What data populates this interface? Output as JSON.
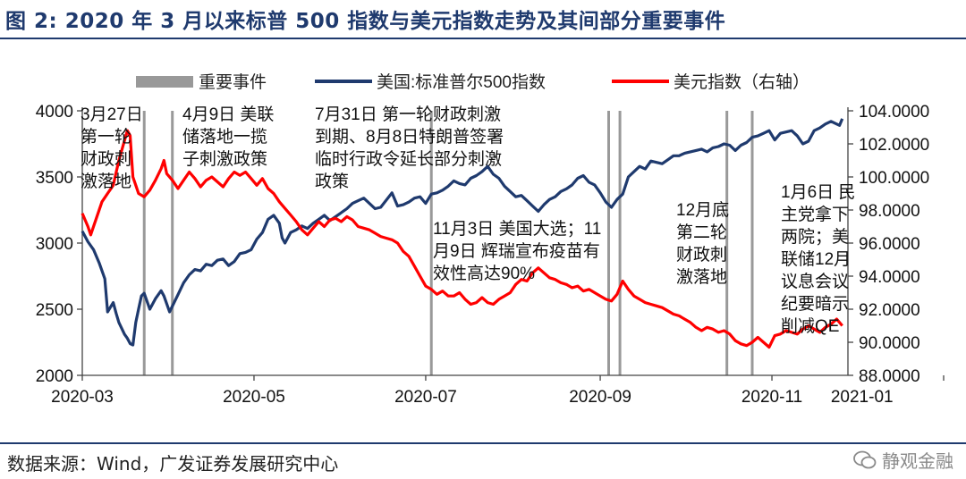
{
  "title": "图 2:  2020 年 3 月以来标普 500 指数与美元指数走势及其间部分重要事件",
  "source": "数据来源：Wind，广发证券发展研究中心",
  "watermark": "静观金融",
  "chart_data": {
    "type": "line",
    "x_ticks": [
      "2020-03",
      "2020-05",
      "2020-07",
      "2020-09",
      "2020-11",
      "2021-01"
    ],
    "left_axis": {
      "min": 2000,
      "max": 4000,
      "ticks": [
        2000,
        2500,
        3000,
        3500,
        4000
      ]
    },
    "right_axis": {
      "min": 88,
      "max": 104,
      "ticks": [
        "88.0000",
        "90.0000",
        "92.0000",
        "94.0000",
        "96.0000",
        "98.0000",
        "100.0000",
        "102.0000",
        "104.0000"
      ]
    },
    "legend": {
      "events": "重要事件",
      "sp500": "美国:标准普尔500指数",
      "dxy": "美元指数（右轴）"
    },
    "colors": {
      "sp500": "#1f3a6e",
      "dxy": "#ff0000",
      "events": "#999999",
      "axis": "#444444"
    },
    "event_days": [
      22,
      32,
      124,
      187,
      191,
      229,
      238
    ],
    "series": [
      {
        "name": "美国:标准普尔500指数",
        "axis": "left",
        "points": [
          [
            0,
            3090
          ],
          [
            2,
            3010
          ],
          [
            4,
            2950
          ],
          [
            6,
            2850
          ],
          [
            8,
            2730
          ],
          [
            9,
            2480
          ],
          [
            11,
            2550
          ],
          [
            12,
            2470
          ],
          [
            13,
            2400
          ],
          [
            15,
            2310
          ],
          [
            16,
            2280
          ],
          [
            17,
            2240
          ],
          [
            18,
            2230
          ],
          [
            19,
            2400
          ],
          [
            20,
            2500
          ],
          [
            21,
            2600
          ],
          [
            22,
            2620
          ],
          [
            24,
            2500
          ],
          [
            26,
            2580
          ],
          [
            28,
            2640
          ],
          [
            29,
            2600
          ],
          [
            31,
            2480
          ],
          [
            34,
            2610
          ],
          [
            36,
            2700
          ],
          [
            38,
            2760
          ],
          [
            40,
            2800
          ],
          [
            42,
            2790
          ],
          [
            44,
            2840
          ],
          [
            46,
            2830
          ],
          [
            48,
            2870
          ],
          [
            50,
            2880
          ],
          [
            52,
            2830
          ],
          [
            54,
            2860
          ],
          [
            56,
            2920
          ],
          [
            58,
            2930
          ],
          [
            60,
            2950
          ],
          [
            62,
            3030
          ],
          [
            64,
            3080
          ],
          [
            66,
            3180
          ],
          [
            68,
            3210
          ],
          [
            70,
            3150
          ],
          [
            71,
            3040
          ],
          [
            72,
            3000
          ],
          [
            74,
            3080
          ],
          [
            76,
            3100
          ],
          [
            78,
            3130
          ],
          [
            80,
            3110
          ],
          [
            82,
            3150
          ],
          [
            84,
            3180
          ],
          [
            86,
            3210
          ],
          [
            88,
            3170
          ],
          [
            90,
            3200
          ],
          [
            92,
            3230
          ],
          [
            94,
            3260
          ],
          [
            96,
            3300
          ],
          [
            98,
            3320
          ],
          [
            100,
            3340
          ],
          [
            104,
            3260
          ],
          [
            106,
            3270
          ],
          [
            110,
            3380
          ],
          [
            112,
            3280
          ],
          [
            114,
            3290
          ],
          [
            116,
            3310
          ],
          [
            118,
            3340
          ],
          [
            120,
            3350
          ],
          [
            122,
            3300
          ],
          [
            124,
            3370
          ],
          [
            126,
            3380
          ],
          [
            128,
            3400
          ],
          [
            130,
            3430
          ],
          [
            132,
            3470
          ],
          [
            134,
            3450
          ],
          [
            136,
            3440
          ],
          [
            138,
            3490
          ],
          [
            140,
            3510
          ],
          [
            142,
            3540
          ],
          [
            144,
            3580
          ],
          [
            146,
            3520
          ],
          [
            148,
            3490
          ],
          [
            150,
            3430
          ],
          [
            152,
            3390
          ],
          [
            154,
            3350
          ],
          [
            156,
            3360
          ],
          [
            158,
            3320
          ],
          [
            160,
            3280
          ],
          [
            162,
            3240
          ],
          [
            164,
            3290
          ],
          [
            166,
            3330
          ],
          [
            168,
            3350
          ],
          [
            170,
            3390
          ],
          [
            172,
            3410
          ],
          [
            174,
            3440
          ],
          [
            176,
            3490
          ],
          [
            178,
            3510
          ],
          [
            180,
            3460
          ],
          [
            182,
            3440
          ],
          [
            184,
            3380
          ],
          [
            186,
            3310
          ],
          [
            188,
            3270
          ],
          [
            190,
            3330
          ],
          [
            192,
            3370
          ],
          [
            194,
            3500
          ],
          [
            196,
            3540
          ],
          [
            198,
            3580
          ],
          [
            200,
            3560
          ],
          [
            202,
            3620
          ],
          [
            204,
            3610
          ],
          [
            206,
            3600
          ],
          [
            208,
            3630
          ],
          [
            210,
            3660
          ],
          [
            212,
            3660
          ],
          [
            214,
            3680
          ],
          [
            216,
            3690
          ],
          [
            218,
            3700
          ],
          [
            220,
            3710
          ],
          [
            222,
            3690
          ],
          [
            224,
            3720
          ],
          [
            226,
            3730
          ],
          [
            228,
            3750
          ],
          [
            230,
            3740
          ],
          [
            232,
            3700
          ],
          [
            234,
            3740
          ],
          [
            236,
            3760
          ],
          [
            238,
            3800
          ],
          [
            240,
            3810
          ],
          [
            242,
            3830
          ],
          [
            244,
            3850
          ],
          [
            246,
            3780
          ],
          [
            248,
            3830
          ],
          [
            250,
            3840
          ],
          [
            252,
            3850
          ],
          [
            254,
            3810
          ],
          [
            256,
            3750
          ],
          [
            258,
            3770
          ],
          [
            260,
            3850
          ],
          [
            262,
            3870
          ],
          [
            264,
            3900
          ],
          [
            266,
            3920
          ],
          [
            268,
            3900
          ],
          [
            269,
            3890
          ],
          [
            270,
            3940
          ]
        ]
      },
      {
        "name": "美元指数（右轴）",
        "axis": "right",
        "points": [
          [
            0,
            97.8
          ],
          [
            2,
            97.0
          ],
          [
            3,
            96.5
          ],
          [
            5,
            97.5
          ],
          [
            7,
            98.5
          ],
          [
            9,
            99.0
          ],
          [
            11,
            99.5
          ],
          [
            13,
            101.0
          ],
          [
            15,
            102.2
          ],
          [
            16,
            102.8
          ],
          [
            17,
            102.5
          ],
          [
            18,
            100.0
          ],
          [
            19,
            99.5
          ],
          [
            20,
            99.0
          ],
          [
            22,
            98.8
          ],
          [
            24,
            99.2
          ],
          [
            26,
            99.8
          ],
          [
            28,
            100.5
          ],
          [
            29,
            101.0
          ],
          [
            30,
            100.2
          ],
          [
            32,
            99.8
          ],
          [
            34,
            99.3
          ],
          [
            36,
            99.8
          ],
          [
            38,
            100.3
          ],
          [
            40,
            99.9
          ],
          [
            42,
            99.4
          ],
          [
            44,
            99.8
          ],
          [
            46,
            100.0
          ],
          [
            48,
            99.7
          ],
          [
            50,
            99.4
          ],
          [
            52,
            99.9
          ],
          [
            54,
            100.3
          ],
          [
            56,
            100.1
          ],
          [
            58,
            100.3
          ],
          [
            60,
            99.9
          ],
          [
            62,
            99.5
          ],
          [
            64,
            99.9
          ],
          [
            66,
            99.3
          ],
          [
            68,
            99.0
          ],
          [
            70,
            98.5
          ],
          [
            72,
            98.1
          ],
          [
            74,
            97.7
          ],
          [
            76,
            97.3
          ],
          [
            78,
            96.8
          ],
          [
            80,
            96.5
          ],
          [
            82,
            96.9
          ],
          [
            84,
            97.3
          ],
          [
            86,
            97.0
          ],
          [
            88,
            97.4
          ],
          [
            90,
            97.5
          ],
          [
            92,
            97.3
          ],
          [
            94,
            97.6
          ],
          [
            96,
            97.4
          ],
          [
            98,
            97.0
          ],
          [
            100,
            96.9
          ],
          [
            102,
            96.8
          ],
          [
            104,
            96.6
          ],
          [
            106,
            96.4
          ],
          [
            108,
            96.3
          ],
          [
            110,
            96.2
          ],
          [
            112,
            96.0
          ],
          [
            114,
            95.5
          ],
          [
            116,
            95.2
          ],
          [
            118,
            94.6
          ],
          [
            120,
            94.0
          ],
          [
            122,
            93.4
          ],
          [
            124,
            93.2
          ],
          [
            126,
            92.9
          ],
          [
            128,
            93.1
          ],
          [
            130,
            92.8
          ],
          [
            132,
            92.8
          ],
          [
            134,
            93.0
          ],
          [
            136,
            92.6
          ],
          [
            138,
            92.3
          ],
          [
            140,
            92.4
          ],
          [
            142,
            92.7
          ],
          [
            144,
            92.4
          ],
          [
            146,
            92.3
          ],
          [
            148,
            92.6
          ],
          [
            150,
            92.8
          ],
          [
            152,
            93.0
          ],
          [
            154,
            93.5
          ],
          [
            156,
            93.8
          ],
          [
            158,
            93.7
          ],
          [
            160,
            94.2
          ],
          [
            162,
            94.5
          ],
          [
            164,
            94.2
          ],
          [
            166,
            93.9
          ],
          [
            168,
            93.8
          ],
          [
            170,
            93.6
          ],
          [
            172,
            93.5
          ],
          [
            174,
            93.3
          ],
          [
            176,
            93.4
          ],
          [
            178,
            93.1
          ],
          [
            180,
            93.2
          ],
          [
            182,
            93.0
          ],
          [
            184,
            92.8
          ],
          [
            186,
            92.6
          ],
          [
            188,
            92.5
          ],
          [
            190,
            92.9
          ],
          [
            192,
            93.7
          ],
          [
            194,
            93.2
          ],
          [
            196,
            92.8
          ],
          [
            198,
            92.6
          ],
          [
            200,
            92.4
          ],
          [
            202,
            92.3
          ],
          [
            204,
            92.2
          ],
          [
            206,
            92.1
          ],
          [
            208,
            91.9
          ],
          [
            210,
            91.7
          ],
          [
            212,
            91.6
          ],
          [
            214,
            91.4
          ],
          [
            216,
            91.2
          ],
          [
            218,
            90.9
          ],
          [
            220,
            90.7
          ],
          [
            222,
            90.9
          ],
          [
            224,
            90.8
          ],
          [
            226,
            90.6
          ],
          [
            228,
            90.7
          ],
          [
            230,
            90.5
          ],
          [
            232,
            90.1
          ],
          [
            234,
            89.9
          ],
          [
            236,
            89.8
          ],
          [
            238,
            90.0
          ],
          [
            240,
            90.3
          ],
          [
            242,
            90.0
          ],
          [
            244,
            89.7
          ],
          [
            246,
            90.4
          ],
          [
            248,
            90.5
          ],
          [
            250,
            90.7
          ],
          [
            252,
            90.6
          ],
          [
            254,
            90.5
          ],
          [
            256,
            90.8
          ],
          [
            258,
            91.0
          ],
          [
            260,
            90.8
          ],
          [
            262,
            90.6
          ],
          [
            264,
            90.9
          ],
          [
            266,
            91.1
          ],
          [
            268,
            91.4
          ],
          [
            269,
            91.2
          ],
          [
            270,
            91.0
          ]
        ]
      }
    ],
    "annotations": [
      {
        "lines": [
          "3月27日",
          "第一轮",
          "财政刺",
          "激落地"
        ]
      },
      {
        "lines": [
          "4月9日 美联",
          "储落地一揽",
          "子刺激政策"
        ]
      },
      {
        "lines": [
          "7月31日 第一轮财政刺激",
          "到期、8月8日特朗普签署",
          "临时行政令延长部分刺激",
          "政策"
        ]
      },
      {
        "lines": [
          "11月3日 美国大选；11",
          "月9日 辉瑞宣布疫苗有",
          "效性高达90%"
        ]
      },
      {
        "lines": [
          "12月底",
          "第二轮",
          "财政刺",
          "激落地"
        ]
      },
      {
        "lines": [
          "1月6日 民",
          "主党拿下",
          "两院；美",
          "联储12月",
          "议息会议",
          "纪要暗示",
          "削减QE"
        ]
      }
    ]
  }
}
